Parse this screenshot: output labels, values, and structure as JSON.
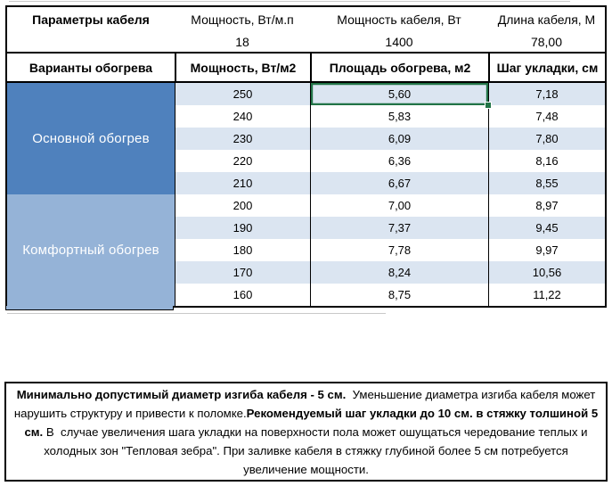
{
  "table": {
    "params": {
      "title": "Параметры кабеля",
      "columns": [
        {
          "header": "Мощность, Вт/м.п",
          "value": "18"
        },
        {
          "header": "Мощность кабеля, Вт",
          "value": "1400"
        },
        {
          "header": "Длина кабеля, М",
          "value": "78,00"
        }
      ]
    },
    "variants_header": [
      "Варианты обогрева",
      "Мощность, Вт/м2",
      "Площадь обогрева, м2",
      "Шаг укладки, см"
    ],
    "groups": [
      {
        "label": "Основной обогрев",
        "color": "#4F81BD",
        "rows": [
          [
            "250",
            "5,60",
            "7,18"
          ],
          [
            "240",
            "5,83",
            "7,48"
          ],
          [
            "230",
            "6,09",
            "7,80"
          ],
          [
            "220",
            "6,36",
            "8,16"
          ],
          [
            "210",
            "6,67",
            "8,55"
          ]
        ]
      },
      {
        "label": "Комфортный обогрев",
        "color": "#95B3D7",
        "rows": [
          [
            "200",
            "7,00",
            "8,97"
          ],
          [
            "190",
            "7,37",
            "9,45"
          ],
          [
            "180",
            "7,78",
            "9,97"
          ],
          [
            "170",
            "8,24",
            "10,56"
          ],
          [
            "160",
            "8,75",
            "11,22"
          ]
        ]
      }
    ],
    "selected": {
      "group": 0,
      "row": 0,
      "col": 1,
      "value": "5,60"
    }
  },
  "note": {
    "segments": [
      {
        "text": "Минимально допустимый диаметр изгиба кабеля - 5 см.",
        "bold": true
      },
      {
        "text": "  Уменьшение диаметра изгиба кабеля может нарушить структуру и привести к поломке.",
        "bold": false
      },
      {
        "text": "Рекомендуемый шаг укладки до 10 см. в стяжку толшиной 5 см.",
        "bold": true
      },
      {
        "text": " В  случае увеличения шага укладки на поверхности пола может ошущаться чередование теплых и холодных зон \"Тепловая зебра\". При заливке кабеля в стяжку глубиной более 5 см потребуется увеличение мощности.",
        "bold": false
      }
    ]
  },
  "colors": {
    "group_main": "#4F81BD",
    "group_comfort": "#95B3D7",
    "row_band": "#DBE5F1",
    "selection_green": "#217346",
    "border_black": "#000000"
  }
}
